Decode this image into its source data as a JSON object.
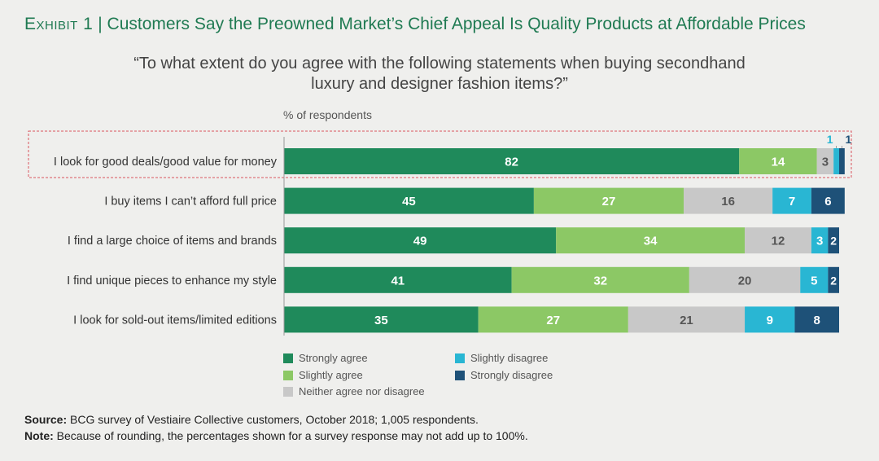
{
  "header": {
    "exhibit": "Exhibit 1",
    "separator": "|",
    "title": "Customers Say the Preowned Market’s Chief Appeal Is Quality Products at Affordable Prices"
  },
  "question": {
    "line1": "“To what extent do you agree with the following statements when buying secondhand",
    "line2": "luxury and designer fashion items?”"
  },
  "units_label": "% of respondents",
  "chart_data": {
    "type": "bar",
    "orientation": "horizontal-stacked",
    "categories": [
      "I look for good deals/good value for money",
      "I buy items I can’t afford full price",
      "I find a large choice of items and brands",
      "I find unique pieces to enhance my style",
      "I look for sold-out items/limited editions"
    ],
    "highlighted_category": "I look for good deals/good value for money",
    "series": [
      {
        "name": "Strongly agree",
        "color": "#1f8a5b",
        "values": [
          82,
          45,
          49,
          41,
          35
        ]
      },
      {
        "name": "Slightly agree",
        "color": "#8cc865",
        "values": [
          14,
          27,
          34,
          32,
          27
        ]
      },
      {
        "name": "Neither agree nor disagree",
        "color": "#c8c8c8",
        "values": [
          3,
          16,
          12,
          20,
          21
        ]
      },
      {
        "name": "Slightly disagree",
        "color": "#29b6d3",
        "values": [
          1,
          7,
          3,
          5,
          9
        ]
      },
      {
        "name": "Strongly disagree",
        "color": "#1e5178",
        "values": [
          1,
          6,
          2,
          2,
          8
        ]
      }
    ],
    "xlim": [
      0,
      100
    ]
  },
  "footer": {
    "source_label": "Source:",
    "source_text": " BCG survey of Vestiaire Collective customers, October 2018; 1,005 respondents.",
    "note_label": "Note:",
    "note_text": " Because of rounding, the percentages shown for a survey response may not add up to 100%."
  }
}
